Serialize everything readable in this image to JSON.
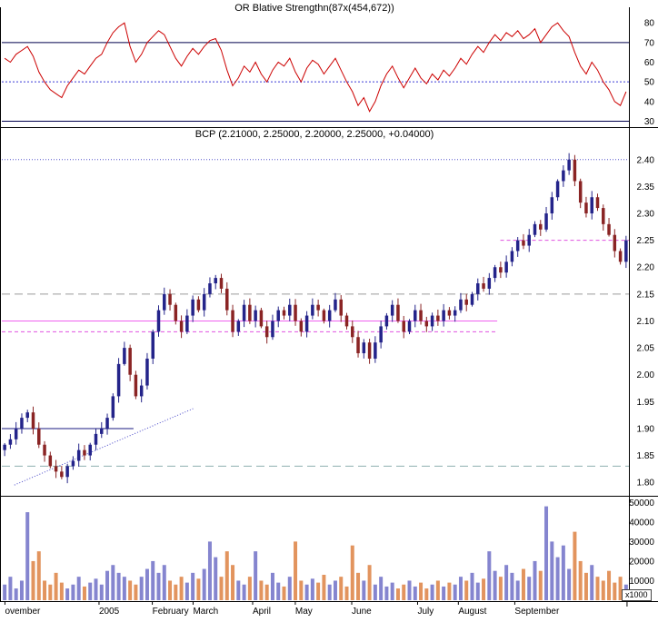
{
  "chart_data": [
    {
      "type": "line",
      "name": "relative-strength-indicator",
      "title": "OR Blative Strengthn(87x(454,672))",
      "ylim": [
        27,
        87
      ],
      "yticks": [
        80,
        70,
        60,
        50,
        40,
        30
      ],
      "line_color": "#cc0000",
      "levels": [
        {
          "value": 70,
          "color": "#00004d",
          "dash": "none"
        },
        {
          "value": 50,
          "color": "#3a3ad6",
          "dash": "2,2"
        },
        {
          "value": 30,
          "color": "#00004d",
          "dash": "none"
        }
      ],
      "values": [
        62,
        60,
        64,
        66,
        68,
        63,
        55,
        50,
        46,
        44,
        42,
        48,
        52,
        56,
        54,
        58,
        62,
        64,
        70,
        75,
        78,
        80,
        68,
        60,
        64,
        70,
        73,
        76,
        74,
        68,
        62,
        58,
        63,
        67,
        64,
        68,
        71,
        72,
        66,
        56,
        48,
        52,
        58,
        55,
        60,
        54,
        50,
        56,
        60,
        58,
        62,
        55,
        50,
        57,
        61,
        59,
        54,
        58,
        62,
        56,
        50,
        45,
        38,
        42,
        35,
        40,
        48,
        54,
        58,
        52,
        47,
        52,
        57,
        52,
        49,
        54,
        51,
        56,
        53,
        57,
        62,
        59,
        64,
        68,
        65,
        70,
        74,
        71,
        75,
        73,
        76,
        72,
        74,
        77,
        70,
        74,
        78,
        80,
        76,
        73,
        65,
        58,
        54,
        60,
        56,
        50,
        46,
        40,
        38,
        45
      ]
    },
    {
      "type": "candlestick",
      "name": "price",
      "title": "BCP (2.21000, 2.25000, 2.20000, 2.25000, +0.04000)",
      "symbol": "BCP",
      "open": "2.21000",
      "high": "2.25000",
      "low": "2.20000",
      "close": "2.25000",
      "change": "+0.04000",
      "ylim": [
        1.775,
        2.43
      ],
      "yticks": [
        2.4,
        2.35,
        2.3,
        2.25,
        2.2,
        2.15,
        2.1,
        2.05,
        2.0,
        1.95,
        1.9,
        1.85,
        1.8
      ],
      "up_color": "#24248a",
      "down_color": "#8a2424",
      "open_first": 1.86,
      "closes": [
        1.87,
        1.88,
        1.9,
        1.92,
        1.93,
        1.9,
        1.87,
        1.85,
        1.83,
        1.82,
        1.81,
        1.83,
        1.84,
        1.86,
        1.85,
        1.87,
        1.89,
        1.9,
        1.92,
        1.96,
        2.02,
        2.05,
        2.0,
        1.96,
        1.98,
        2.03,
        2.08,
        2.12,
        2.15,
        2.13,
        2.1,
        2.08,
        2.11,
        2.14,
        2.12,
        2.15,
        2.17,
        2.18,
        2.16,
        2.12,
        2.08,
        2.1,
        2.13,
        2.1,
        2.12,
        2.09,
        2.07,
        2.1,
        2.12,
        2.11,
        2.13,
        2.1,
        2.08,
        2.11,
        2.13,
        2.12,
        2.1,
        2.12,
        2.14,
        2.11,
        2.09,
        2.07,
        2.04,
        2.06,
        2.03,
        2.06,
        2.09,
        2.11,
        2.13,
        2.1,
        2.08,
        2.1,
        2.12,
        2.1,
        2.09,
        2.11,
        2.1,
        2.12,
        2.11,
        2.12,
        2.14,
        2.13,
        2.15,
        2.17,
        2.16,
        2.18,
        2.2,
        2.19,
        2.21,
        2.23,
        2.25,
        2.24,
        2.26,
        2.28,
        2.27,
        2.3,
        2.33,
        2.36,
        2.38,
        2.4,
        2.36,
        2.32,
        2.3,
        2.33,
        2.31,
        2.28,
        2.26,
        2.23,
        2.21,
        2.25
      ],
      "ref_lines": [
        {
          "value": 2.4,
          "color": "#5555cc",
          "dash": "1,2",
          "x1": 0,
          "x2": 1
        },
        {
          "value": 2.15,
          "color": "#9a9a9a",
          "dash": "9,5",
          "x1": 0,
          "x2": 1
        },
        {
          "value": 2.25,
          "color": "#e052e0",
          "dash": "4,3",
          "x1": 0.795,
          "x2": 1
        },
        {
          "value": 2.1,
          "color": "#f060f0",
          "dash": "none",
          "x1": 0,
          "x2": 0.79
        },
        {
          "value": 2.08,
          "color": "#e052e0",
          "dash": "4,3",
          "x1": 0,
          "x2": 0.79
        },
        {
          "value": 1.9,
          "color": "#1a1a80",
          "dash": "none",
          "x1": 0,
          "x2": 0.21
        },
        {
          "value": 1.83,
          "color": "#8fb0b0",
          "dash": "9,5",
          "x1": 0,
          "x2": 1
        }
      ],
      "trend_line": {
        "x1": 0.02,
        "y1": 1.795,
        "x2": 0.305,
        "y2": 1.937,
        "color": "#4545c8",
        "dash": "1,2"
      }
    },
    {
      "type": "bar",
      "name": "volume",
      "ylim": [
        0,
        52000
      ],
      "yticks": [
        50000,
        40000,
        30000,
        20000,
        10000
      ],
      "unit_label": "x1000",
      "up_color": "#8585cf",
      "down_color": "#e2945e",
      "values_thousands": [
        8,
        12,
        6,
        10,
        45,
        20,
        25,
        10,
        8,
        14,
        9,
        6,
        8,
        12,
        7,
        9,
        11,
        8,
        15,
        18,
        14,
        12,
        10,
        8,
        12,
        16,
        20,
        14,
        18,
        10,
        8,
        12,
        9,
        14,
        11,
        16,
        30,
        22,
        12,
        25,
        18,
        10,
        8,
        12,
        25,
        10,
        8,
        14,
        9,
        7,
        12,
        30,
        10,
        8,
        11,
        9,
        13,
        8,
        10,
        12,
        7,
        28,
        14,
        10,
        18,
        8,
        12,
        7,
        9,
        6,
        8,
        10,
        7,
        9,
        6,
        8,
        10,
        7,
        9,
        8,
        12,
        10,
        14,
        9,
        11,
        25,
        15,
        12,
        18,
        14,
        10,
        16,
        12,
        20,
        15,
        48,
        30,
        22,
        28,
        16,
        35,
        20,
        14,
        18,
        12,
        10,
        15,
        9,
        12,
        8
      ]
    }
  ],
  "xaxis": {
    "labels": [
      {
        "text": "ovember",
        "pos": 0.005
      },
      {
        "text": "2005",
        "pos": 0.155
      },
      {
        "text": "February",
        "pos": 0.24
      },
      {
        "text": "March",
        "pos": 0.305
      },
      {
        "text": "April",
        "pos": 0.4
      },
      {
        "text": "May",
        "pos": 0.468
      },
      {
        "text": "June",
        "pos": 0.558
      },
      {
        "text": "July",
        "pos": 0.663
      },
      {
        "text": "August",
        "pos": 0.728
      },
      {
        "text": "September",
        "pos": 0.818
      }
    ],
    "extra_tick_pos": 0.997
  }
}
